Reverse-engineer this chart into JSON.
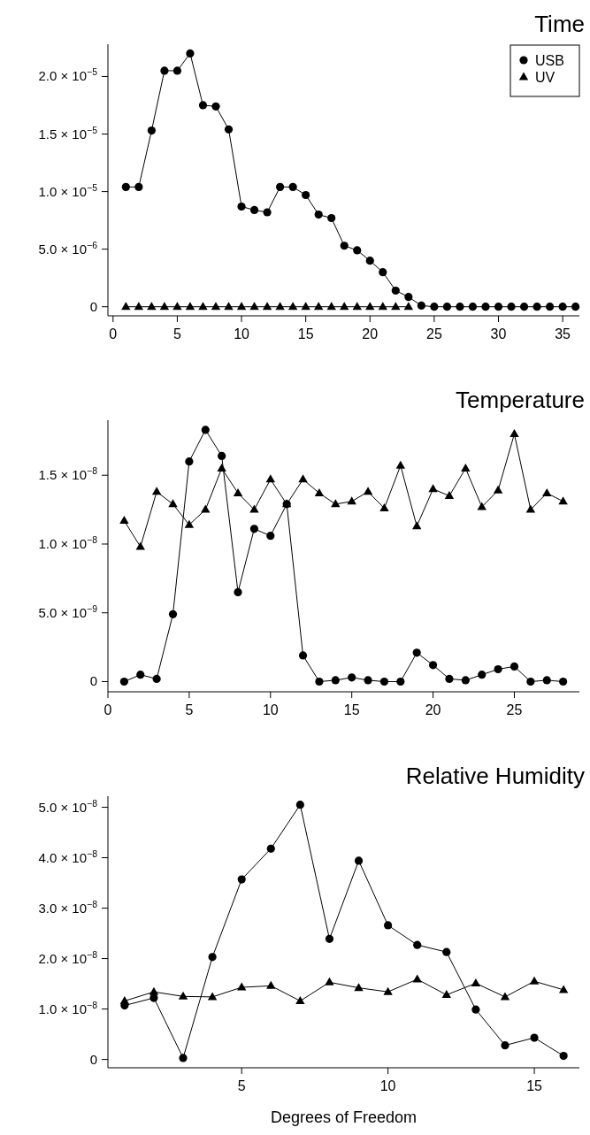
{
  "chart_data": [
    {
      "type": "line",
      "title": "Time",
      "xlim": [
        -0.4,
        36.3
      ],
      "xticks": [
        0,
        5,
        10,
        15,
        20,
        25,
        30,
        35
      ],
      "ylim": [
        -7.9e-07,
        2.28e-05
      ],
      "yticks": [
        {
          "value": 0,
          "label": "0"
        },
        {
          "value": 5e-06,
          "label": "5.0 × 10$^{−6}$"
        },
        {
          "value": 1e-05,
          "label": "1.0 × 10$^{−5}$"
        },
        {
          "value": 1.5e-05,
          "label": "1.5 × 10$^{−5}$"
        },
        {
          "value": 2e-05,
          "label": "2.0 × 10$^{−5}$"
        }
      ],
      "legend": "top right",
      "x": [
        1,
        2,
        3,
        4,
        5,
        6,
        7,
        8,
        9,
        10,
        11,
        12,
        13,
        14,
        15,
        16,
        17,
        18,
        19,
        20,
        21,
        22,
        23,
        24,
        25,
        26,
        27,
        28,
        29,
        30,
        31,
        32,
        33,
        34,
        35,
        36
      ],
      "series": [
        {
          "name": "USB",
          "color": "#000000",
          "marker": "circle",
          "values": [
            1.04e-05,
            1.04e-05,
            1.53e-05,
            2.05e-05,
            2.05e-05,
            2.2e-05,
            1.75e-05,
            1.74e-05,
            1.54e-05,
            8.7e-06,
            8.4e-06,
            8.2e-06,
            1.04e-05,
            1.04e-05,
            9.7e-06,
            8e-06,
            7.7e-06,
            5.3e-06,
            4.9e-06,
            4e-06,
            3e-06,
            1.4e-06,
            8.5e-07,
            1e-07,
            0,
            0,
            0,
            0,
            0,
            0,
            0,
            0,
            0,
            0,
            0,
            0
          ]
        },
        {
          "name": "UV",
          "color": "#000000",
          "marker": "triangle",
          "x": [
            1,
            2,
            3,
            4,
            5,
            6,
            7,
            8,
            9,
            10,
            11,
            12,
            13,
            14,
            15,
            16,
            17,
            18,
            19,
            20,
            21,
            22,
            23
          ],
          "values": [
            0,
            0,
            0,
            0,
            0,
            0,
            0,
            0,
            0,
            0,
            0,
            0,
            0,
            0,
            0,
            0,
            0,
            0,
            0,
            0,
            0,
            0,
            0
          ]
        }
      ]
    },
    {
      "type": "line",
      "title": "Temperature",
      "xlim": [
        0,
        29
      ],
      "xticks": [
        0,
        5,
        10,
        15,
        20,
        25
      ],
      "ylim": [
        -7.4e-10,
        1.9e-08
      ],
      "yticks": [
        {
          "value": 0,
          "label": "0"
        },
        {
          "value": 5e-09,
          "label": "5.0 × 10$^{−9}$"
        },
        {
          "value": 1e-08,
          "label": "1.0 × 10$^{−8}$"
        },
        {
          "value": 1.5e-08,
          "label": "1.5 × 10$^{−8}$"
        }
      ],
      "x": [
        1,
        2,
        3,
        4,
        5,
        6,
        7,
        8,
        9,
        10,
        11,
        12,
        13,
        14,
        15,
        16,
        17,
        18,
        19,
        20,
        21,
        22,
        23,
        24,
        25,
        26,
        27,
        28
      ],
      "series": [
        {
          "color": "#000000",
          "marker": "circle",
          "values": [
            0,
            5e-10,
            2e-10,
            4.9e-09,
            1.6e-08,
            1.83e-08,
            1.64e-08,
            6.5e-09,
            1.11e-08,
            1.06e-08,
            1.29e-08,
            1.9e-09,
            0,
            1e-10,
            3e-10,
            1e-10,
            0,
            0,
            2.1e-09,
            1.2e-09,
            2e-10,
            1e-10,
            5e-10,
            9e-10,
            1.1e-09,
            0,
            1e-10,
            0
          ]
        },
        {
          "color": "#000000",
          "marker": "triangle",
          "values": [
            1.17e-08,
            9.8e-09,
            1.38e-08,
            1.29e-08,
            1.14e-08,
            1.25e-08,
            1.55e-08,
            1.37e-08,
            1.25e-08,
            1.47e-08,
            1.29e-08,
            1.47e-08,
            1.37e-08,
            1.29e-08,
            1.31e-08,
            1.38e-08,
            1.26e-08,
            1.57e-08,
            1.13e-08,
            1.4e-08,
            1.35e-08,
            1.55e-08,
            1.27e-08,
            1.39e-08,
            1.8e-08,
            1.25e-08,
            1.37e-08,
            1.31e-08
          ]
        }
      ]
    },
    {
      "type": "line",
      "title": "Relative Humidity",
      "xlabel": "Degrees of Freedom",
      "xlim": [
        0.43,
        16.54
      ],
      "xticks": [
        5,
        10,
        15
      ],
      "ylim": [
        -1.65e-09,
        5.22e-08
      ],
      "yticks": [
        {
          "value": 0,
          "label": "0"
        },
        {
          "value": 1e-08,
          "label": "1.0 × 10$^{−8}$"
        },
        {
          "value": 2e-08,
          "label": "2.0 × 10$^{−8}$"
        },
        {
          "value": 3e-08,
          "label": "3.0 × 10$^{−8}$"
        },
        {
          "value": 4e-08,
          "label": "4.0 × 10$^{−8}$"
        },
        {
          "value": 5e-08,
          "label": "5.0 × 10$^{−8}$"
        }
      ],
      "x": [
        1,
        2,
        3,
        4,
        5,
        6,
        7,
        8,
        9,
        10,
        11,
        12,
        13,
        14,
        15,
        16
      ],
      "series": [
        {
          "color": "#000000",
          "marker": "circle",
          "values": [
            1.07e-08,
            1.22e-08,
            3e-10,
            2.03e-08,
            3.57e-08,
            4.18e-08,
            5.05e-08,
            2.39e-08,
            3.94e-08,
            2.66e-08,
            2.27e-08,
            2.13e-08,
            9.9e-09,
            2.8e-09,
            4.3e-09,
            7e-10
          ]
        },
        {
          "color": "#000000",
          "marker": "triangle",
          "values": [
            1.16e-08,
            1.34e-08,
            1.25e-08,
            1.24e-08,
            1.43e-08,
            1.46e-08,
            1.16e-08,
            1.53e-08,
            1.42e-08,
            1.34e-08,
            1.59e-08,
            1.28e-08,
            1.51e-08,
            1.24e-08,
            1.55e-08,
            1.38e-08
          ]
        }
      ]
    }
  ]
}
